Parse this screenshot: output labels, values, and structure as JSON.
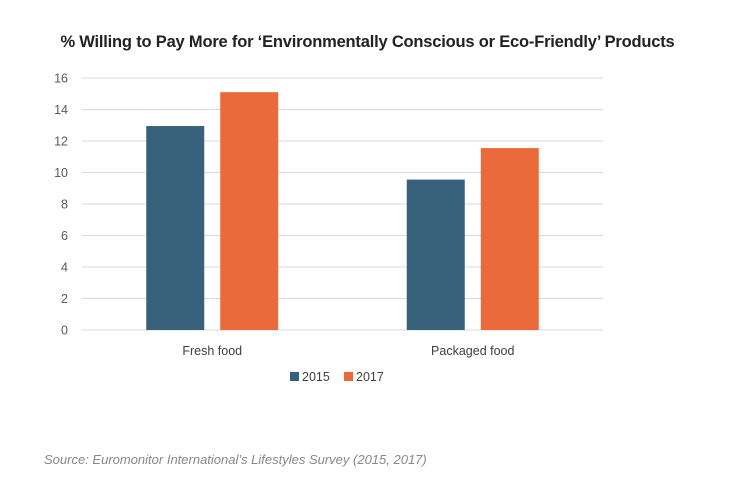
{
  "chart_data": {
    "type": "bar",
    "title": "% Willing to Pay More for ‘Environmentally Conscious or Eco-Friendly’ Products",
    "xlabel": "",
    "ylabel": "",
    "categories": [
      "Fresh food",
      "Packaged food"
    ],
    "series": [
      {
        "name": "2015",
        "color": "#37607a",
        "values": [
          12.95,
          9.55
        ]
      },
      {
        "name": "2017",
        "color": "#ea6a3b",
        "values": [
          15.1,
          11.55
        ]
      }
    ],
    "ylim": [
      0,
      16
    ],
    "yticks": [
      0,
      2,
      4,
      6,
      8,
      10,
      12,
      14,
      16
    ],
    "grid": true,
    "legend_position": "bottom-center"
  },
  "source": "Source: Euromonitor International’s Lifestyles Survey (2015, 2017)"
}
